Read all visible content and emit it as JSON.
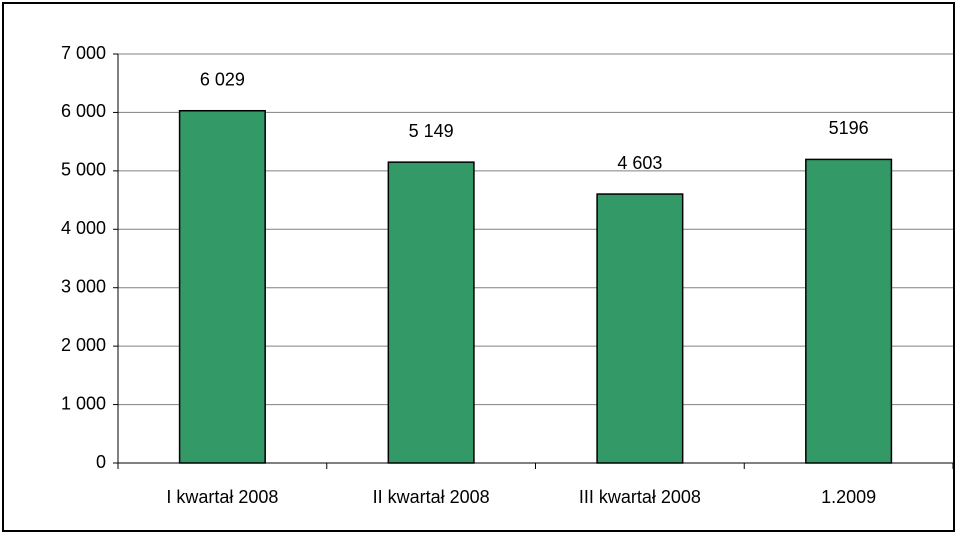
{
  "chart_data": {
    "type": "bar",
    "categories": [
      "I kwartał 2008",
      "II kwartał 2008",
      "III kwartał 2008",
      "1.2009"
    ],
    "values": [
      6029,
      5149,
      4603,
      5196
    ],
    "value_labels": [
      "6 029",
      "5 149",
      "4 603",
      "5196"
    ],
    "color": "#339966",
    "ylim": [
      0,
      7000
    ],
    "yticks": [
      0,
      {
        "value": 1000,
        "label": "1 000"
      },
      {
        "value": 2000,
        "label": "2 000"
      },
      {
        "value": 3000,
        "label": "3 000"
      },
      {
        "value": 4000,
        "label": "4 000"
      },
      {
        "value": 5000,
        "label": "5 000"
      },
      {
        "value": 6000,
        "label": "6 000"
      },
      {
        "value": 7000,
        "label": "7 000"
      }
    ],
    "grid": true
  }
}
